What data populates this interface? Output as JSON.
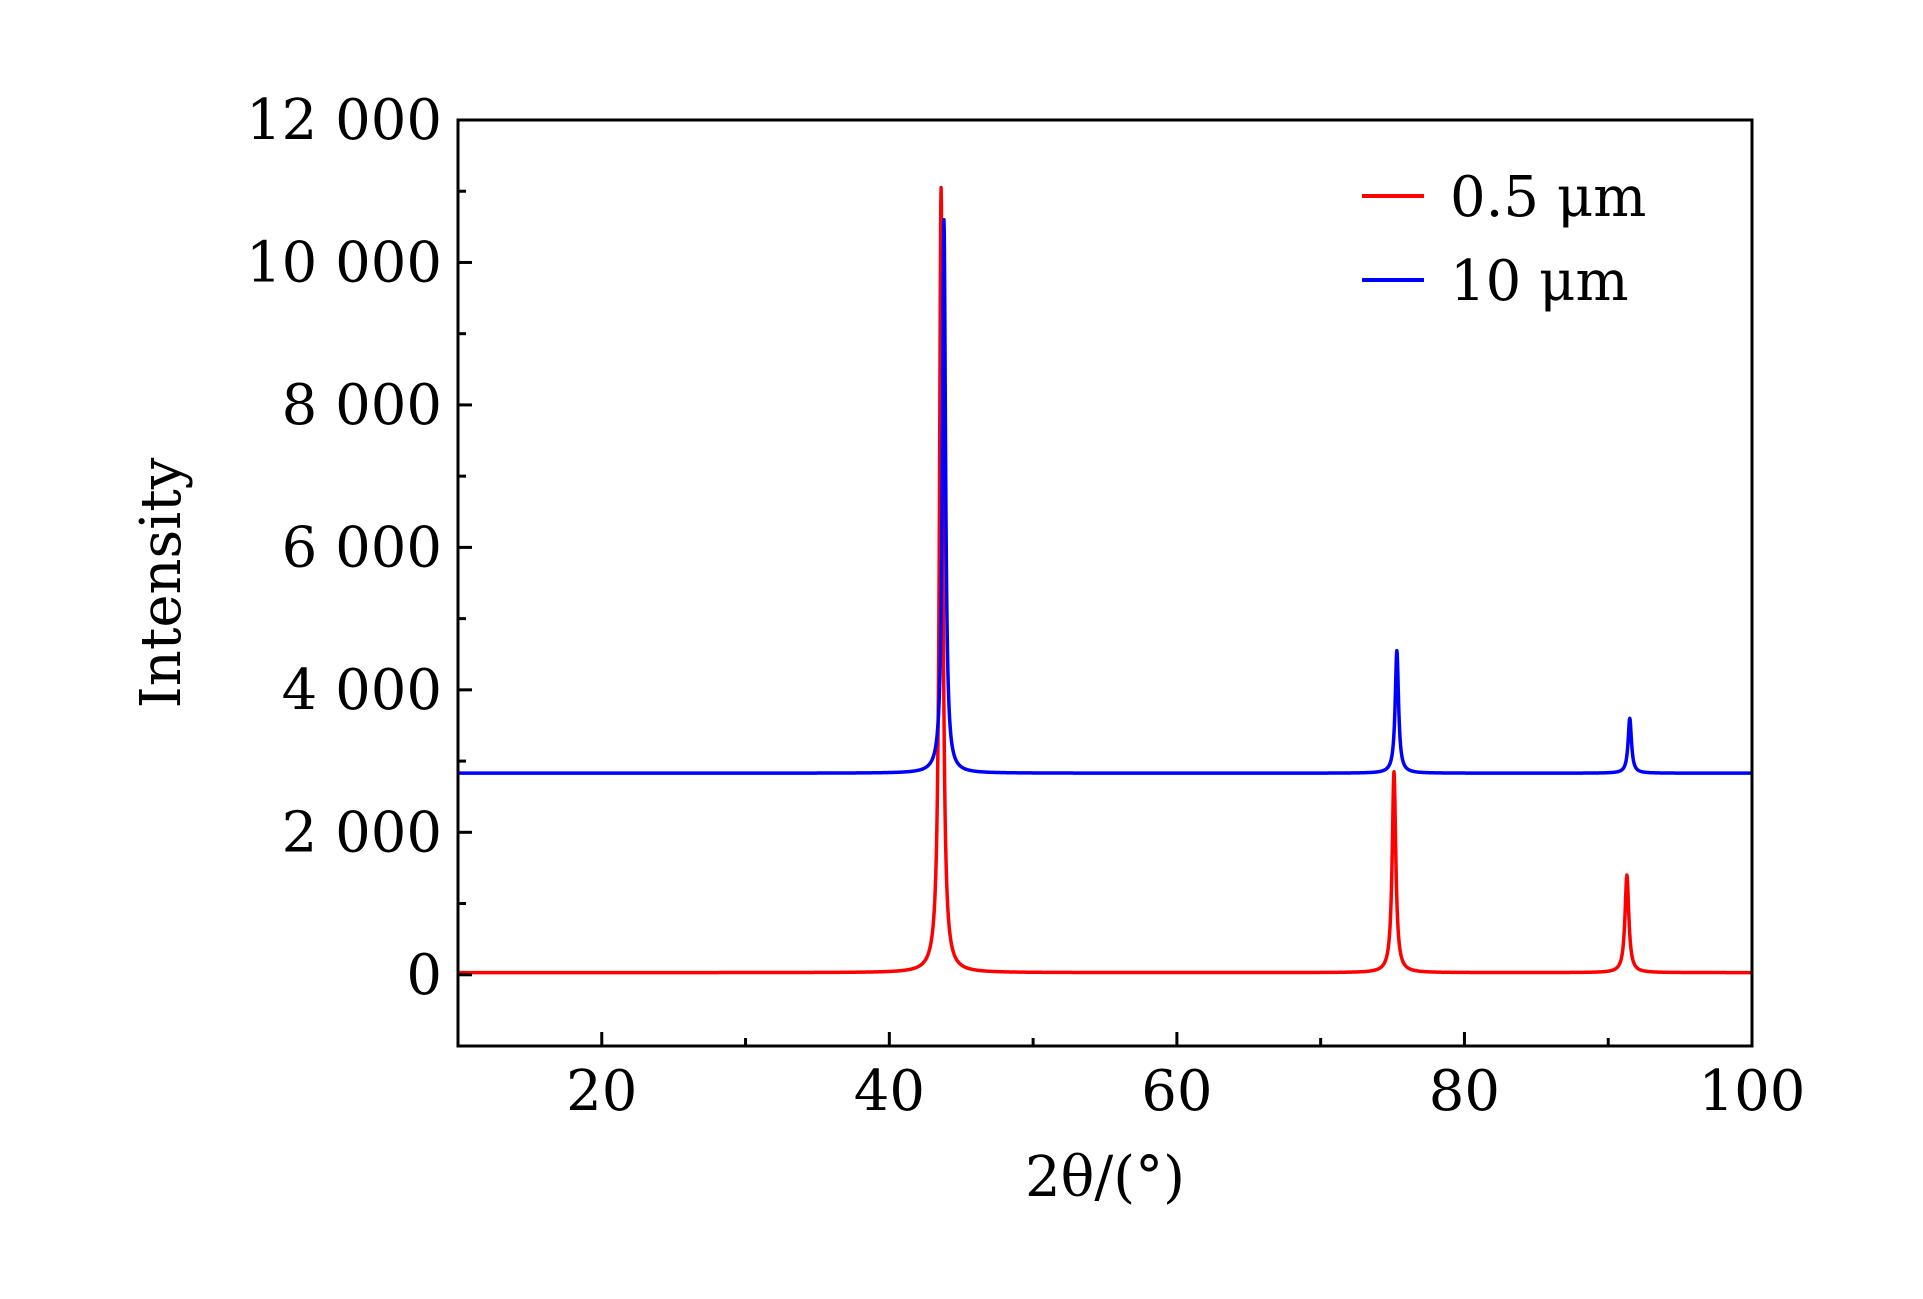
{
  "chart_data": {
    "type": "line",
    "title": "",
    "xlabel": "2θ/(°)",
    "ylabel": "Intensity",
    "xlim": [
      10,
      100
    ],
    "ylim": [
      -1000,
      12000
    ],
    "x_ticks": [
      20,
      40,
      60,
      80,
      100
    ],
    "x_tick_labels": [
      "20",
      "40",
      "60",
      "80",
      "100"
    ],
    "x_minor_step": 10,
    "y_ticks": [
      0,
      2000,
      4000,
      6000,
      8000,
      10000,
      12000
    ],
    "y_tick_labels": [
      "0",
      "2 000",
      "4 000",
      "6 000",
      "8 000",
      "10 000",
      "12 000"
    ],
    "y_minor_step": 1000,
    "grid": false,
    "legend_position": "top-right",
    "series": [
      {
        "name": "0.5 μm",
        "color": "#ff0000",
        "baseline": 30,
        "peaks": [
          {
            "x": 43.6,
            "height": 11050,
            "width": 0.28
          },
          {
            "x": 75.1,
            "height": 2850,
            "width": 0.3
          },
          {
            "x": 91.3,
            "height": 1400,
            "width": 0.32
          }
        ]
      },
      {
        "name": "10 μm",
        "color": "#0000ff",
        "baseline": 2830,
        "peaks": [
          {
            "x": 43.8,
            "height": 10600,
            "width": 0.26
          },
          {
            "x": 75.3,
            "height": 4550,
            "width": 0.28
          },
          {
            "x": 91.5,
            "height": 3600,
            "width": 0.28
          }
        ]
      }
    ]
  }
}
